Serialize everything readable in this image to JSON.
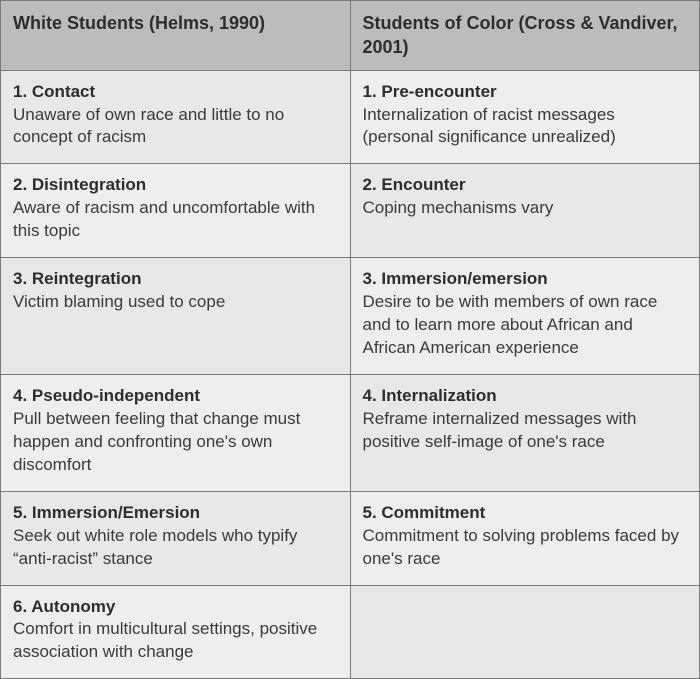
{
  "table": {
    "columns": [
      {
        "header": "White Students (Helms, 1990)"
      },
      {
        "header": "Students of Color (Cross & Vandiver, 2001)"
      }
    ],
    "header_bg": "#bcbcbc",
    "zebra_colors": [
      "#e8e8e8",
      "#eeeeee"
    ],
    "border_color": "#7a7a7a",
    "title_fontsize": 18,
    "body_fontsize": 17,
    "rows": [
      {
        "left": {
          "title": "1. Contact",
          "desc": "Unaware of own race and little to no concept of racism"
        },
        "right": {
          "title": "1. Pre-encounter",
          "desc": "Internalization of racist messages (personal significance unrealized)"
        }
      },
      {
        "left": {
          "title": "2. Disintegration",
          "desc": "Aware of racism and uncomfortable with this topic"
        },
        "right": {
          "title": "2. Encounter",
          "desc": "Coping mechanisms vary"
        }
      },
      {
        "left": {
          "title": "3. Reintegration",
          "desc": "Victim blaming used to cope"
        },
        "right": {
          "title": "3. Immersion/emersion",
          "desc": "Desire to be with members of own race and to learn more about African and African American experience"
        }
      },
      {
        "left": {
          "title": "4. Pseudo-independent",
          "desc": "Pull between feeling that change must happen and confronting one's own discomfort"
        },
        "right": {
          "title": "4. Internalization",
          "desc": "Reframe internalized messages with positive self-image of one's race"
        }
      },
      {
        "left": {
          "title": "5. Immersion/Emersion",
          "desc": "Seek out white role models who typify “anti-racist” stance"
        },
        "right": {
          "title": "5. Commitment",
          "desc": "Commitment to solving problems faced by one's race"
        }
      },
      {
        "left": {
          "title": "6. Autonomy",
          "desc": "Comfort in multicultural settings, positive association with change"
        },
        "right": {
          "title": "",
          "desc": ""
        }
      }
    ]
  }
}
